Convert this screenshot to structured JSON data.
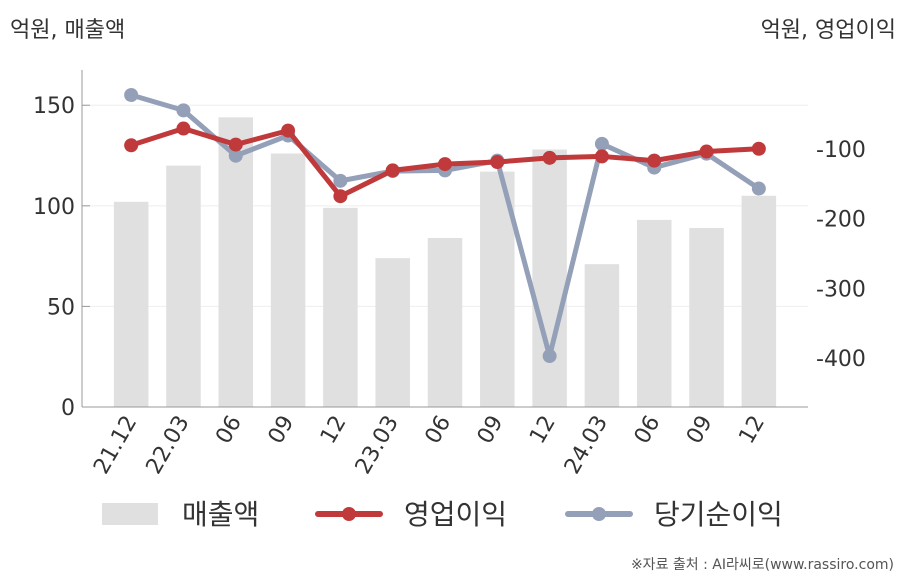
{
  "left_axis_title": "억원, 매출액",
  "right_axis_title": "억원, 영업이익",
  "source": "※자료 출처 : AI라씨로(www.rassiro.com)",
  "colors": {
    "revenue": "#e0e0e0",
    "operating_profit": "#c0393b",
    "net_income": "#94a0b8",
    "axis": "#999999",
    "grid": "#eeeeee",
    "tick_text": "#333333"
  },
  "chart_data": {
    "type": "bar",
    "categories": [
      "21.12",
      "22.03",
      "06",
      "09",
      "12",
      "23.03",
      "06",
      "09",
      "12",
      "24.03",
      "06",
      "09",
      "12"
    ],
    "y_left": {
      "ticks": [
        0,
        50,
        100,
        150
      ],
      "range": [
        0,
        170
      ]
    },
    "y_right": {
      "ticks": [
        -100,
        -200,
        -300,
        -400
      ],
      "range": [
        -470,
        20
      ]
    },
    "grid": true,
    "legend_position": "bottom",
    "series": [
      {
        "name": "매출액",
        "type": "bar",
        "axis": "left",
        "values": [
          102,
          120,
          144,
          126,
          99,
          74,
          84,
          117,
          128,
          71,
          93,
          89,
          105
        ]
      },
      {
        "name": "영업이익",
        "type": "line",
        "axis": "right",
        "values": [
          -95,
          -71,
          -94,
          -74,
          -168,
          -131,
          -122,
          -119,
          -113,
          -111,
          -117,
          -104,
          -100
        ]
      },
      {
        "name": "당기순이익",
        "type": "line",
        "axis": "right",
        "values": [
          -23,
          -45,
          -110,
          -81,
          -146,
          -132,
          -131,
          -117,
          -397,
          -93,
          -127,
          -107,
          -157
        ]
      }
    ]
  }
}
